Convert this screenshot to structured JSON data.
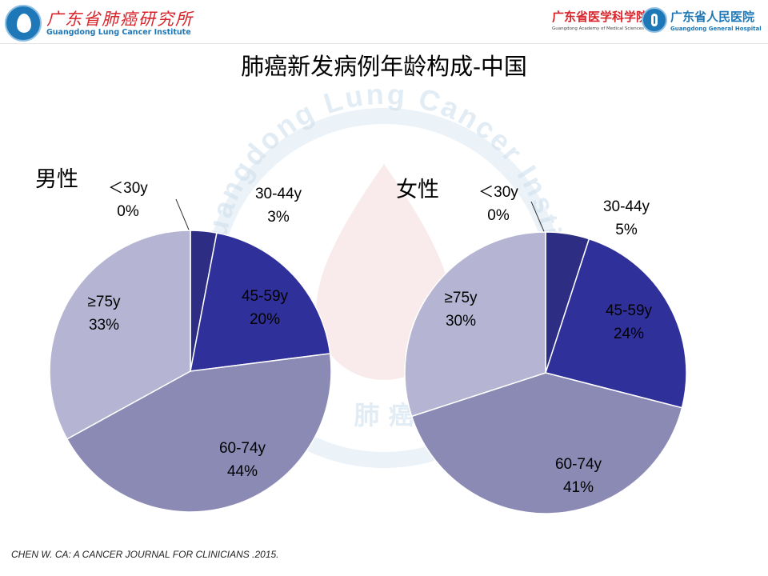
{
  "header": {
    "left_logo": {
      "icon": "lung-institute-emblem-icon",
      "name_cn": "广东省肺癌研究所",
      "name_en": "Guangdong Lung Cancer Institute"
    },
    "right_logo": {
      "academy_cn": "广东省医学科学院",
      "academy_en": "Guangdong Academy of Medical Sciences",
      "hospital_icon": "hospital-emblem-icon",
      "hospital_cn": "广东省人民医院",
      "hospital_en": "Guangdong General Hospital"
    },
    "watermark_text": "Guangdong Lung Cancer Institute",
    "watermark_cn": "肺 癌"
  },
  "title": "肺癌新发病例年龄构成-中国",
  "chart_data": [
    {
      "type": "pie",
      "title": "男性",
      "categories": [
        "＜30y",
        "30-44y",
        "45-59y",
        "60-74y",
        "≥75y"
      ],
      "values": [
        0,
        3,
        20,
        44,
        33
      ],
      "value_labels": [
        "0%",
        "3%",
        "20%",
        "44%",
        "33%"
      ],
      "unit": "%",
      "colors": [
        "#27276e",
        "#2d2d83",
        "#30309a",
        "#8a8ab5",
        "#b5b5d3"
      ]
    },
    {
      "type": "pie",
      "title": "女性",
      "categories": [
        "＜30y",
        "30-44y",
        "45-59y",
        "60-74y",
        "≥75y"
      ],
      "values": [
        0,
        5,
        24,
        41,
        30
      ],
      "value_labels": [
        "0%",
        "5%",
        "24%",
        "41%",
        "30%"
      ],
      "unit": "%",
      "colors": [
        "#27276e",
        "#2d2d83",
        "#30309a",
        "#8a8ab5",
        "#b5b5d3"
      ]
    }
  ],
  "citation": "CHEN W. CA: A CANCER JOURNAL FOR CLINICIANS .2015."
}
